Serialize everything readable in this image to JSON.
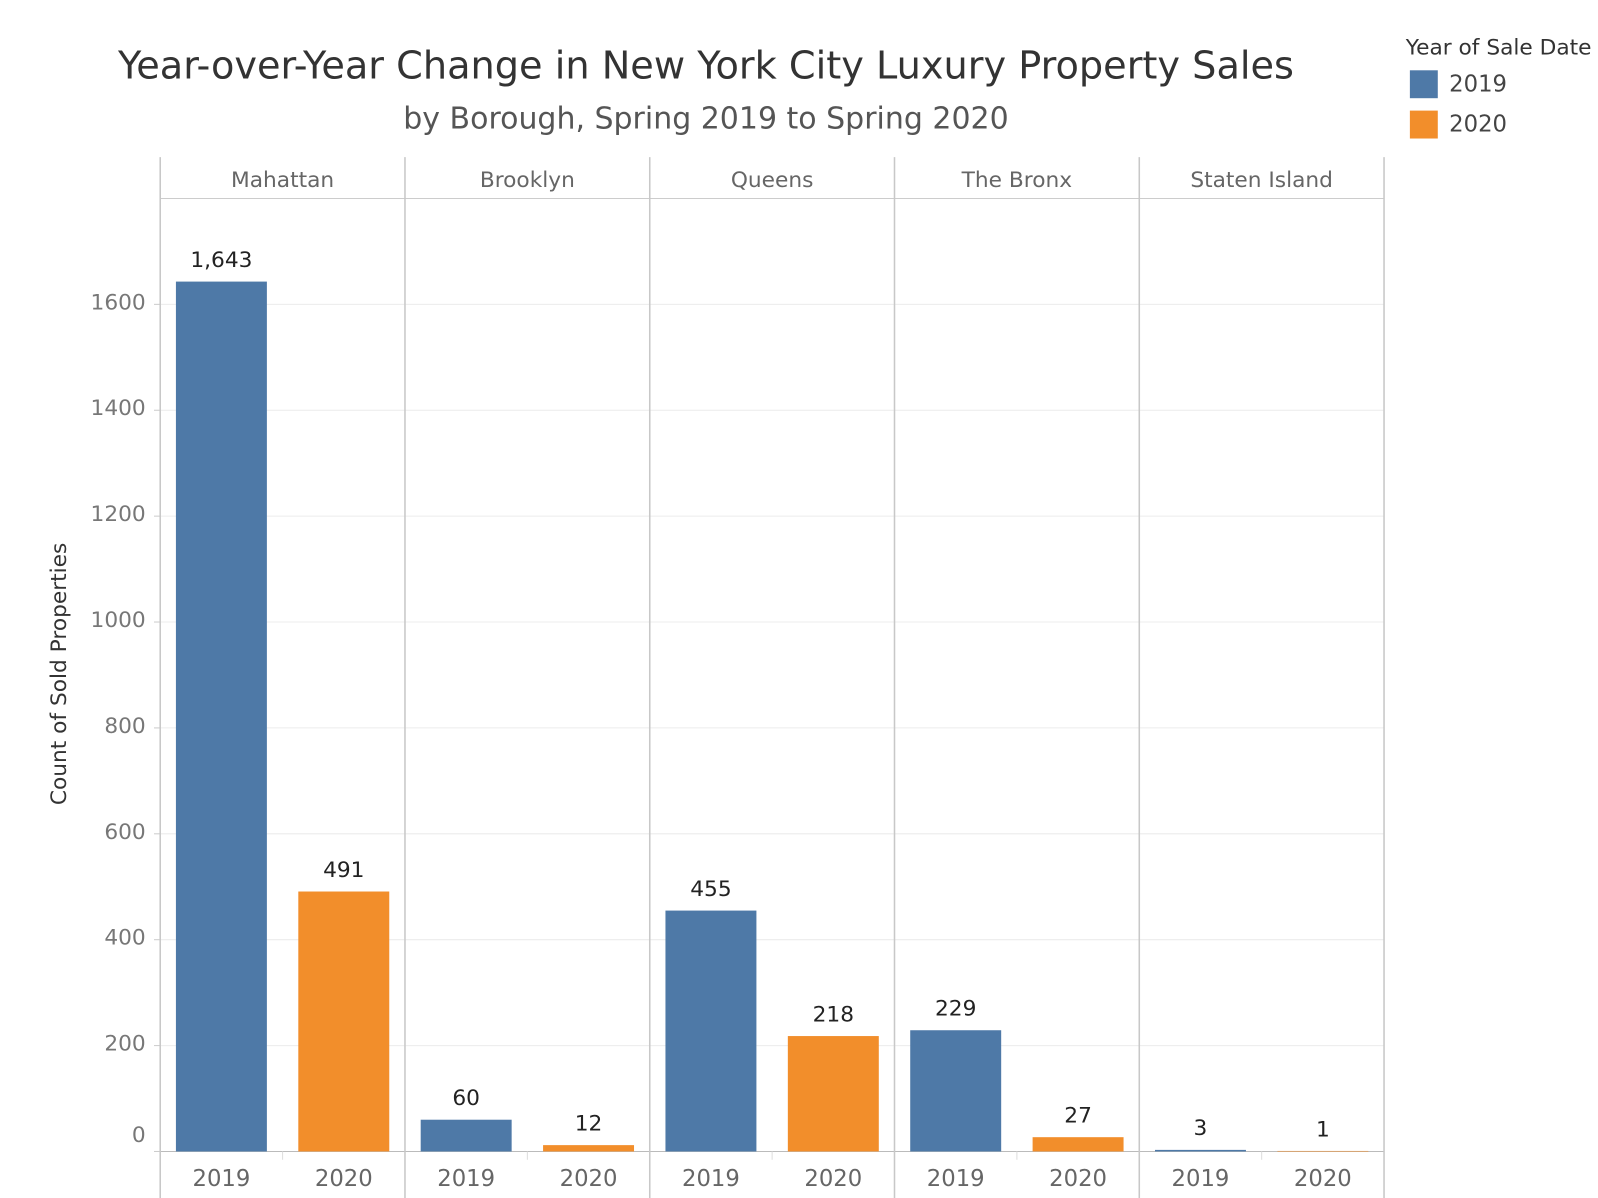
{
  "chart_data": {
    "type": "bar",
    "title": "Year-over-Year Change in New York City Luxury Property Sales",
    "subtitle": "by Borough, Spring 2019 to Spring 2020",
    "y_label": "Count of Sold Properties",
    "legend_title": "Year of Sale Date",
    "legend": "top-right",
    "grid": true,
    "categories": [
      "Mahattan",
      "Brooklyn",
      "Queens",
      "The Bronx",
      "Staten Island"
    ],
    "series": [
      {
        "name": "2019",
        "color": "#4e79a7",
        "values": [
          1643,
          60,
          455,
          229,
          3
        ],
        "value_labels": [
          "1,643",
          "60",
          "455",
          "229",
          "3"
        ]
      },
      {
        "name": "2020",
        "color": "#f28e2b",
        "values": [
          491,
          12,
          218,
          27,
          1
        ]
      }
    ],
    "ylim": [
      0,
      1800
    ],
    "yticks": [
      0,
      200,
      400,
      600,
      800,
      1000,
      1200,
      1400,
      1600
    ]
  }
}
